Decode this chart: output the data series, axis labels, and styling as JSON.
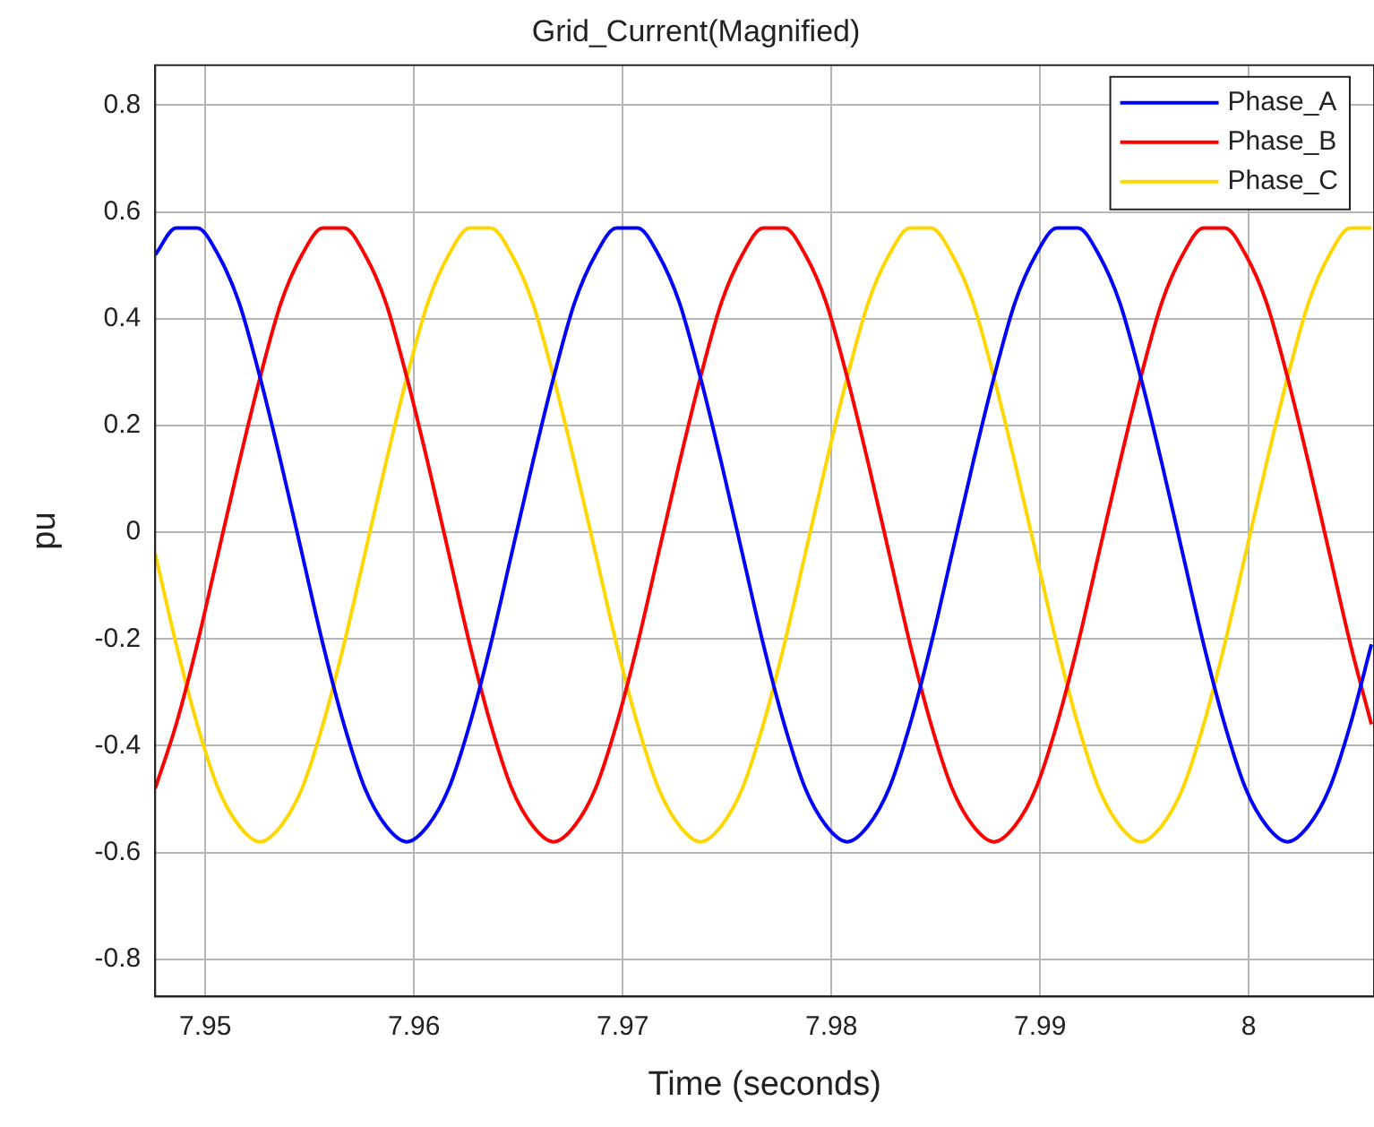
{
  "chart_data": {
    "type": "line",
    "title": "Grid_Current(Magnified)",
    "xlabel": "Time (seconds)",
    "ylabel": "pu",
    "x": [
      7.9476,
      7.948605,
      7.94961,
      7.950614,
      7.951619,
      7.952624,
      7.953629,
      7.954633,
      7.955638,
      7.956643,
      7.957648,
      7.958652,
      7.959657,
      7.960662,
      7.961667,
      7.962671,
      7.963676,
      7.964681,
      7.965686,
      7.96669,
      7.967695,
      7.9687,
      7.969705,
      7.97071,
      7.971714,
      7.972719,
      7.973724,
      7.974729,
      7.975733,
      7.976738,
      7.977743,
      7.978748,
      7.979752,
      7.980757,
      7.981762,
      7.982767,
      7.983771,
      7.984776,
      7.985781,
      7.986786,
      7.98779,
      7.988795,
      7.9898,
      7.990805,
      7.99181,
      7.992814,
      7.993819,
      7.994824,
      7.995829,
      7.996833,
      7.997838,
      7.998843,
      7.999848,
      8.000852,
      8.001857,
      8.002862,
      8.003867,
      8.004871,
      8.005876
    ],
    "series": [
      {
        "name": "Phase_A",
        "color": "#0000ff",
        "values": [
          0.52,
          0.57,
          0.57,
          0.52,
          0.43,
          0.29,
          0.13,
          -0.04,
          -0.21,
          -0.36,
          -0.48,
          -0.55,
          -0.58,
          -0.55,
          -0.48,
          -0.36,
          -0.21,
          -0.04,
          0.13,
          0.29,
          0.43,
          0.52,
          0.57,
          0.57,
          0.52,
          0.43,
          0.29,
          0.13,
          -0.04,
          -0.21,
          -0.36,
          -0.48,
          -0.55,
          -0.58,
          -0.55,
          -0.48,
          -0.36,
          -0.21,
          -0.04,
          0.13,
          0.29,
          0.43,
          0.52,
          0.57,
          0.57,
          0.52,
          0.43,
          0.29,
          0.13,
          -0.04,
          -0.21,
          -0.36,
          -0.48,
          -0.55,
          -0.58,
          -0.55,
          -0.48,
          -0.36,
          -0.21
        ]
      },
      {
        "name": "Phase_B",
        "color": "#ff0000",
        "values": [
          -0.48,
          -0.36,
          -0.21,
          -0.04,
          0.13,
          0.29,
          0.43,
          0.52,
          0.57,
          0.57,
          0.52,
          0.43,
          0.29,
          0.13,
          -0.04,
          -0.21,
          -0.36,
          -0.48,
          -0.55,
          -0.58,
          -0.55,
          -0.48,
          -0.36,
          -0.21,
          -0.04,
          0.13,
          0.29,
          0.43,
          0.52,
          0.57,
          0.57,
          0.52,
          0.43,
          0.29,
          0.13,
          -0.04,
          -0.21,
          -0.36,
          -0.48,
          -0.55,
          -0.58,
          -0.55,
          -0.48,
          -0.36,
          -0.21,
          -0.04,
          0.13,
          0.29,
          0.43,
          0.52,
          0.57,
          0.57,
          0.52,
          0.43,
          0.29,
          0.13,
          -0.04,
          -0.21,
          -0.36
        ]
      },
      {
        "name": "Phase_C",
        "color": "#ffd700",
        "values": [
          -0.04,
          -0.21,
          -0.36,
          -0.48,
          -0.55,
          -0.58,
          -0.55,
          -0.48,
          -0.36,
          -0.21,
          -0.04,
          0.13,
          0.29,
          0.43,
          0.52,
          0.57,
          0.57,
          0.52,
          0.43,
          0.29,
          0.13,
          -0.04,
          -0.21,
          -0.36,
          -0.48,
          -0.55,
          -0.58,
          -0.55,
          -0.48,
          -0.36,
          -0.21,
          -0.04,
          0.13,
          0.29,
          0.43,
          0.52,
          0.57,
          0.57,
          0.52,
          0.43,
          0.29,
          0.13,
          -0.04,
          -0.21,
          -0.36,
          -0.48,
          -0.55,
          -0.58,
          -0.55,
          -0.48,
          -0.36,
          -0.21,
          -0.04,
          0.13,
          0.29,
          0.43,
          0.52,
          0.57,
          0.57
        ]
      }
    ],
    "xlim": [
      7.9476,
      8.006
    ],
    "xticks": [
      7.95,
      7.96,
      7.97,
      7.98,
      7.99,
      8
    ],
    "ylim": [
      -0.87,
      0.875
    ],
    "yticks": [
      -0.8,
      -0.6,
      -0.4,
      -0.2,
      0,
      0.2,
      0.4,
      0.6,
      0.8
    ],
    "grid": true,
    "legend": "top right"
  }
}
